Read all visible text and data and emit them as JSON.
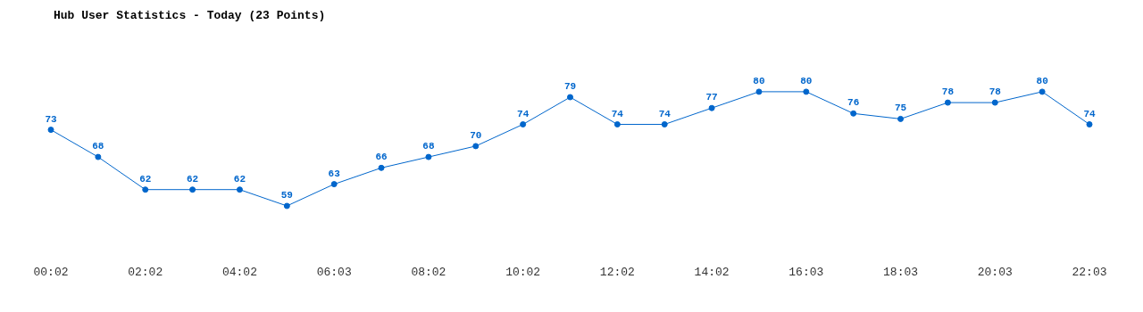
{
  "chart_data": {
    "type": "line",
    "title": "Hub User Statistics - Today (23 Points)",
    "categories": [
      "00:02",
      null,
      "02:02",
      null,
      "04:02",
      null,
      "06:03",
      null,
      "08:02",
      null,
      "10:02",
      null,
      "12:02",
      null,
      "14:02",
      null,
      "16:03",
      null,
      "18:03",
      null,
      "20:03",
      null,
      "22:03"
    ],
    "series": [
      {
        "color": "#0066cc",
        "values": [
          73,
          68,
          62,
          62,
          62,
          59,
          63,
          66,
          68,
          70,
          74,
          79,
          74,
          74,
          77,
          80,
          80,
          76,
          75,
          78,
          78,
          80,
          74
        ]
      }
    ],
    "data_labels": true,
    "marker": "circle"
  }
}
